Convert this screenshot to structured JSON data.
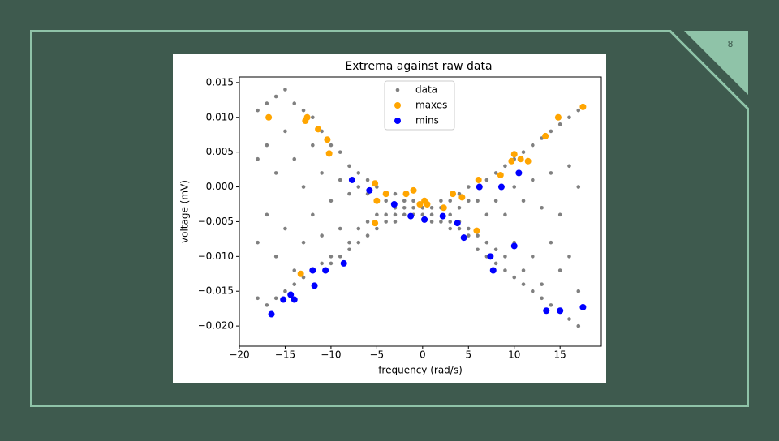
{
  "slide_number": "8",
  "chart_data": {
    "type": "scatter",
    "title": "Extrema against raw data",
    "x_label": "frequency (rad/s)",
    "y_label": "voltage (mV)",
    "xlim": [
      -20,
      19.5
    ],
    "ylim": [
      -0.0229,
      0.0158
    ],
    "xticks": [
      {
        "value": -20,
        "label": "−20"
      },
      {
        "value": -15,
        "label": "−15"
      },
      {
        "value": -10,
        "label": "−10"
      },
      {
        "value": -5,
        "label": "−5"
      },
      0,
      5,
      10,
      15
    ],
    "yticks": [
      {
        "value": -0.02,
        "label": "−0.020"
      },
      {
        "value": -0.015,
        "label": "−0.015"
      },
      {
        "value": -0.01,
        "label": "−0.010"
      },
      {
        "value": -0.005,
        "label": "−0.005"
      },
      {
        "value": 0,
        "label": "0.000"
      },
      {
        "value": 0.005,
        "label": "0.005"
      },
      {
        "value": 0.01,
        "label": "0.010"
      },
      0.015
    ],
    "legend": "upper center",
    "grid": false,
    "series": [
      {
        "name": "data",
        "color": "#808080",
        "x": [
          -18,
          -18,
          -18,
          -18,
          -17,
          -17,
          -17,
          -17,
          -16,
          -16,
          -16,
          -16,
          -15,
          -15,
          -15,
          -15,
          -14,
          -14,
          -14,
          -14,
          -13,
          -13,
          -13,
          -13,
          -12,
          -12,
          -12,
          -12,
          -11,
          -11,
          -11,
          -11,
          -10,
          -10,
          -10,
          -10,
          -9,
          -9,
          -9,
          -9,
          -8,
          -8,
          -8,
          -8,
          -7,
          -7,
          -7,
          -7,
          -6,
          -6,
          -6,
          -6,
          -5,
          -5,
          -5,
          -5,
          -4,
          -4,
          -4,
          -4,
          -3,
          -3,
          -3,
          -3,
          -2,
          -2,
          -2,
          -1,
          -1,
          -1,
          0,
          0,
          1,
          1,
          1,
          2,
          2,
          2,
          3,
          3,
          3,
          3,
          4,
          4,
          4,
          4,
          5,
          5,
          5,
          5,
          6,
          6,
          6,
          6,
          7,
          7,
          7,
          7,
          8,
          8,
          8,
          8,
          9,
          9,
          9,
          9,
          10,
          10,
          10,
          10,
          11,
          11,
          11,
          11,
          12,
          12,
          12,
          12,
          13,
          13,
          13,
          13,
          14,
          14,
          14,
          14,
          15,
          15,
          15,
          15,
          16,
          16,
          16,
          16,
          17,
          17,
          17,
          17
        ],
        "values": [
          0.011,
          0.004,
          -0.008,
          -0.016,
          0.012,
          0.006,
          -0.004,
          -0.017,
          0.013,
          0.002,
          -0.01,
          -0.016,
          0.014,
          0.008,
          -0.006,
          -0.015,
          0.012,
          0.004,
          -0.012,
          -0.014,
          0.011,
          0,
          -0.008,
          -0.013,
          0.01,
          0.006,
          -0.004,
          -0.012,
          0.008,
          0.002,
          -0.007,
          -0.011,
          0.006,
          -0.002,
          -0.01,
          -0.011,
          0.005,
          0.001,
          -0.006,
          -0.01,
          0.003,
          -0.001,
          -0.008,
          -0.009,
          0.002,
          0,
          -0.006,
          -0.008,
          0.001,
          -0.001,
          -0.005,
          -0.007,
          0,
          -0.002,
          -0.004,
          -0.006,
          -0.001,
          -0.002,
          -0.004,
          -0.005,
          -0.001,
          -0.003,
          -0.004,
          -0.005,
          -0.002,
          -0.003,
          -0.004,
          -0.002,
          -0.003,
          -0.004,
          -0.003,
          -0.004,
          -0.003,
          -0.004,
          -0.005,
          -0.002,
          -0.003,
          -0.005,
          -0.002,
          -0.004,
          -0.005,
          -0.006,
          -0.001,
          -0.003,
          -0.005,
          -0.006,
          0,
          -0.002,
          -0.006,
          -0.007,
          0,
          -0.002,
          -0.007,
          -0.009,
          0.001,
          -0.004,
          -0.008,
          -0.01,
          0.002,
          -0.002,
          -0.009,
          -0.011,
          0.003,
          -0.004,
          -0.01,
          -0.012,
          0.004,
          0,
          -0.008,
          -0.013,
          0.005,
          -0.002,
          -0.012,
          -0.014,
          0.006,
          0.001,
          -0.01,
          -0.015,
          0.007,
          -0.003,
          -0.014,
          -0.016,
          0.008,
          0.002,
          -0.008,
          -0.017,
          0.009,
          -0.004,
          -0.012,
          -0.018,
          0.01,
          0.003,
          -0.01,
          -0.019,
          0.011,
          0,
          -0.015,
          -0.02
        ]
      },
      {
        "name": "maxes",
        "color": "#ffa500",
        "x": [
          -16.8,
          -12.8,
          -12.6,
          -11.4,
          -10.4,
          -10.2,
          -5.2,
          -5,
          -5.2,
          -4,
          -1.8,
          -1,
          -0.3,
          0.2,
          0.5,
          2.3,
          3.3,
          4.3,
          5.9,
          6.1,
          8.5,
          9.7,
          10,
          10.7,
          11.5,
          13.4,
          14.8,
          17.5,
          -13.3
        ],
        "values": [
          0.01,
          0.0095,
          0.01,
          0.0083,
          0.0068,
          0.0048,
          0.0005,
          -0.002,
          -0.0052,
          -0.001,
          -0.001,
          -0.0005,
          -0.0025,
          -0.002,
          -0.0025,
          -0.003,
          -0.001,
          -0.0015,
          -0.0063,
          0.001,
          0.0017,
          0.0037,
          0.0047,
          0.004,
          0.0037,
          0.0073,
          0.01,
          0.0115,
          -0.0125
        ]
      },
      {
        "name": "mins",
        "color": "#0000ff",
        "x": [
          -16.5,
          -15.2,
          -14.4,
          -14,
          -12,
          -11.8,
          -10.6,
          -8.6,
          -7.7,
          -5.8,
          -3.1,
          -1.3,
          0.2,
          2.2,
          3.8,
          4.5,
          6.2,
          7.4,
          7.7,
          8.6,
          10,
          10.5,
          13.5,
          15,
          17.5
        ],
        "values": [
          -0.0183,
          -0.0162,
          -0.0155,
          -0.0162,
          -0.012,
          -0.0142,
          -0.012,
          -0.011,
          0.001,
          -0.0005,
          -0.0025,
          -0.0042,
          -0.0047,
          -0.0042,
          -0.0052,
          -0.0073,
          0,
          -0.01,
          -0.012,
          0,
          -0.0085,
          0.002,
          -0.0178,
          -0.0178,
          -0.0173
        ]
      }
    ]
  }
}
